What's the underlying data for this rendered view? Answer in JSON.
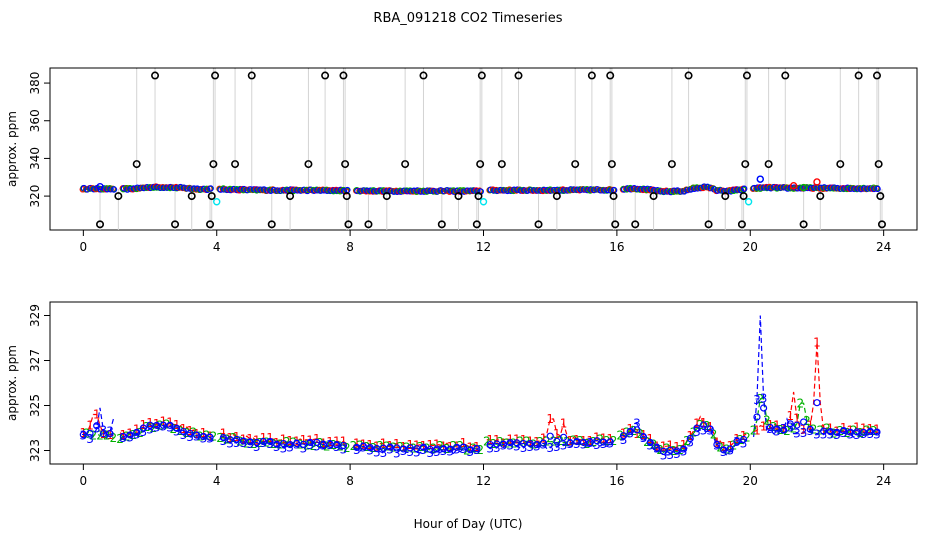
{
  "page_title": "RBA_091218  CO2 Timeseries",
  "xlabel": "Hour of Day (UTC)",
  "colors": {
    "black": "#000000",
    "red": "#ff0000",
    "green": "#00b000",
    "blue": "#0000ff",
    "cyan": "#00e5ee",
    "gray": "#a8a8a8"
  },
  "chart_data": [
    {
      "type": "scatter",
      "title": "RBA_091218  CO2 Timeseries",
      "xlabel": "",
      "ylabel": "approx. ppm",
      "xlim": [
        -1,
        25
      ],
      "ylim": [
        302,
        388
      ],
      "xticks": [
        0,
        4,
        8,
        12,
        16,
        20,
        24
      ],
      "yticks": [
        320,
        340,
        360,
        380
      ],
      "baseline_ppm": 323.5,
      "series": [
        {
          "name": "black circles (outliers)",
          "color": "#000000",
          "points": [
            [
              0.5,
              305
            ],
            [
              1.05,
              320
            ],
            [
              1.6,
              337
            ],
            [
              2.15,
              384
            ],
            [
              2.75,
              305
            ],
            [
              3.25,
              320
            ],
            [
              3.8,
              305
            ],
            [
              3.85,
              320
            ],
            [
              3.9,
              337
            ],
            [
              3.95,
              384
            ],
            [
              4.55,
              337
            ],
            [
              5.05,
              384
            ],
            [
              5.65,
              305
            ],
            [
              6.2,
              320
            ],
            [
              6.75,
              337
            ],
            [
              7.25,
              384
            ],
            [
              7.8,
              384
            ],
            [
              7.85,
              337
            ],
            [
              7.9,
              320
            ],
            [
              7.95,
              305
            ],
            [
              8.55,
              305
            ],
            [
              9.1,
              320
            ],
            [
              9.65,
              337
            ],
            [
              10.2,
              384
            ],
            [
              10.75,
              305
            ],
            [
              11.25,
              320
            ],
            [
              11.8,
              305
            ],
            [
              11.85,
              320
            ],
            [
              11.9,
              337
            ],
            [
              11.95,
              384
            ],
            [
              12.55,
              337
            ],
            [
              13.05,
              384
            ],
            [
              13.65,
              305
            ],
            [
              14.2,
              320
            ],
            [
              14.75,
              337
            ],
            [
              15.25,
              384
            ],
            [
              15.8,
              384
            ],
            [
              15.85,
              337
            ],
            [
              15.9,
              320
            ],
            [
              15.95,
              305
            ],
            [
              16.55,
              305
            ],
            [
              17.1,
              320
            ],
            [
              17.65,
              337
            ],
            [
              18.15,
              384
            ],
            [
              18.75,
              305
            ],
            [
              19.25,
              320
            ],
            [
              19.75,
              305
            ],
            [
              19.8,
              320
            ],
            [
              19.85,
              337
            ],
            [
              19.9,
              384
            ],
            [
              20.55,
              337
            ],
            [
              21.05,
              384
            ],
            [
              21.6,
              305
            ],
            [
              22.1,
              320
            ],
            [
              22.7,
              337
            ],
            [
              23.25,
              384
            ],
            [
              23.8,
              384
            ],
            [
              23.85,
              337
            ],
            [
              23.9,
              320
            ],
            [
              23.95,
              305
            ]
          ]
        },
        {
          "name": "cyan circles",
          "color": "#00e5ee",
          "points": [
            [
              4.0,
              317
            ],
            [
              12.0,
              317
            ],
            [
              19.95,
              317
            ],
            [
              20.3,
              329
            ]
          ]
        },
        {
          "name": "channel 1 (red)",
          "color": "#ff0000",
          "points": [
            [
              21.3,
              325.5
            ],
            [
              22.0,
              327.5
            ]
          ]
        },
        {
          "name": "channel 2 (green)",
          "color": "#00b000",
          "points": [
            [
              21.6,
              324.5
            ]
          ]
        },
        {
          "name": "channel 3 (blue)",
          "color": "#0000ff",
          "points": [
            [
              0.5,
              325
            ],
            [
              20.3,
              329
            ]
          ]
        }
      ]
    },
    {
      "type": "line",
      "title": "",
      "xlabel": "Hour of Day (UTC)",
      "ylabel": "approx. ppm",
      "xlim": [
        -1,
        25
      ],
      "ylim": [
        322.4,
        329.6
      ],
      "xticks": [
        0,
        4,
        8,
        12,
        16,
        20,
        24
      ],
      "yticks": [
        323,
        325,
        327,
        329
      ],
      "gaps_hours": [
        [
          0.95,
          1.1
        ],
        [
          3.9,
          4.1
        ],
        [
          7.9,
          8.1
        ],
        [
          11.9,
          12.1
        ],
        [
          15.9,
          16.1
        ],
        [
          19.9,
          20.1
        ]
      ],
      "profile": {
        "x": [
          0.0,
          0.5,
          1.0,
          1.5,
          2.0,
          2.5,
          3.0,
          3.5,
          3.9,
          4.1,
          5.0,
          6.0,
          7.0,
          7.9,
          8.1,
          9.0,
          10.0,
          11.0,
          11.9,
          12.1,
          13.0,
          14.0,
          15.0,
          15.9,
          16.1,
          16.5,
          17.0,
          17.3,
          17.6,
          18.0,
          18.3,
          18.6,
          18.8,
          19.0,
          19.3,
          19.6,
          19.9,
          20.1,
          20.5,
          21.0,
          22.0,
          23.0,
          23.8
        ],
        "y": [
          323.7,
          323.7,
          323.6,
          323.7,
          324.1,
          324.1,
          323.9,
          323.6,
          323.6,
          323.6,
          323.4,
          323.3,
          323.3,
          323.2,
          323.2,
          323.1,
          323.1,
          323.1,
          323.1,
          323.3,
          323.3,
          323.3,
          323.4,
          323.4,
          323.6,
          323.8,
          323.4,
          323.0,
          323.0,
          323.1,
          323.8,
          324.1,
          324.0,
          323.3,
          323.0,
          323.4,
          323.6,
          323.8,
          324.0,
          323.9,
          323.9,
          323.8,
          323.8
        ]
      },
      "series": [
        {
          "name": "1",
          "color": "#ff0000",
          "offset": 0.12,
          "spikes": [
            [
              0.35,
              324.6
            ],
            [
              14.05,
              324.4
            ],
            [
              14.4,
              324.2
            ],
            [
              18.5,
              324.5
            ],
            [
              21.3,
              325.6
            ],
            [
              22.0,
              327.8
            ]
          ]
        },
        {
          "name": "2",
          "color": "#00b000",
          "offset": 0.0,
          "spikes": [
            [
              18.6,
              324.3
            ],
            [
              20.35,
              325.3
            ],
            [
              21.55,
              325.1
            ]
          ]
        },
        {
          "name": "3",
          "color": "#0000ff",
          "offset": -0.12,
          "spikes": [
            [
              0.5,
              324.9
            ],
            [
              0.9,
              324.4
            ],
            [
              16.55,
              324.2
            ],
            [
              20.3,
              329.0
            ],
            [
              21.1,
              324.4
            ]
          ]
        }
      ],
      "circles_color": "#0000ff"
    }
  ]
}
